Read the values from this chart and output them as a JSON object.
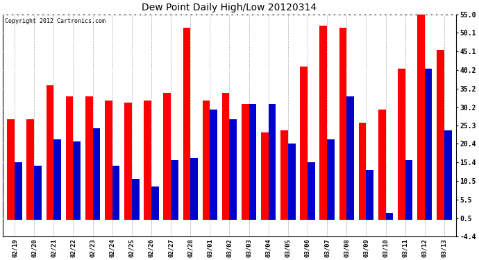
{
  "title": "Dew Point Daily High/Low 20120314",
  "copyright": "Copyright 2012 Cartronics.com",
  "dates": [
    "02/19",
    "02/20",
    "02/21",
    "02/22",
    "02/23",
    "02/24",
    "02/25",
    "02/26",
    "02/27",
    "02/28",
    "03/01",
    "03/02",
    "03/03",
    "03/04",
    "03/05",
    "03/06",
    "03/07",
    "03/08",
    "03/09",
    "03/10",
    "03/11",
    "03/12",
    "03/13"
  ],
  "high_values": [
    27.0,
    27.0,
    36.0,
    33.0,
    33.0,
    32.0,
    31.5,
    32.0,
    34.0,
    51.5,
    32.0,
    34.0,
    31.0,
    23.5,
    24.0,
    41.0,
    52.0,
    51.5,
    26.0,
    29.5,
    40.5,
    55.0,
    45.5
  ],
  "low_values": [
    15.5,
    14.5,
    21.5,
    21.0,
    24.5,
    14.5,
    11.0,
    9.0,
    16.0,
    16.5,
    29.5,
    27.0,
    31.0,
    31.0,
    20.5,
    15.5,
    21.5,
    33.0,
    13.5,
    2.0,
    16.0,
    40.5,
    24.0
  ],
  "high_color": "#ff0000",
  "low_color": "#0000cc",
  "bg_color": "#ffffff",
  "plot_bg_color": "#ffffff",
  "yticks": [
    -4.4,
    0.5,
    5.5,
    10.5,
    15.4,
    20.4,
    25.3,
    30.2,
    35.2,
    40.2,
    45.1,
    50.1,
    55.0
  ],
  "ylim": [
    -4.4,
    55.0
  ],
  "bar_width": 0.38
}
